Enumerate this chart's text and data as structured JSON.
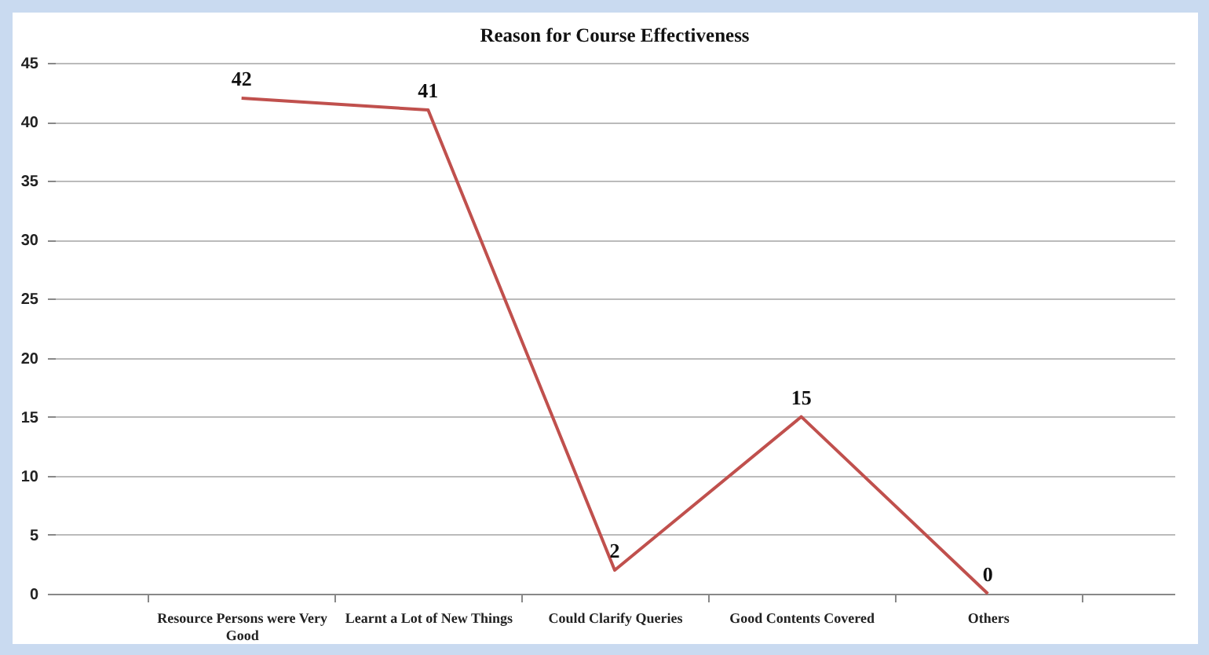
{
  "chart_data": {
    "type": "line",
    "title": "Reason for Course Effectiveness",
    "categories": [
      "Resource Persons were Very Good",
      "Learnt a Lot of New Things",
      "Could Clarify Queries",
      "Good Contents Covered",
      "Others"
    ],
    "series": [
      {
        "color": "#c0504d",
        "values": [
          42,
          41,
          2,
          15,
          0
        ]
      }
    ],
    "ylim": [
      0,
      45
    ],
    "yticks": [
      0,
      5,
      10,
      15,
      20,
      25,
      30,
      35,
      40,
      45
    ],
    "grid": "y",
    "data_labels": true,
    "marker": "none"
  }
}
